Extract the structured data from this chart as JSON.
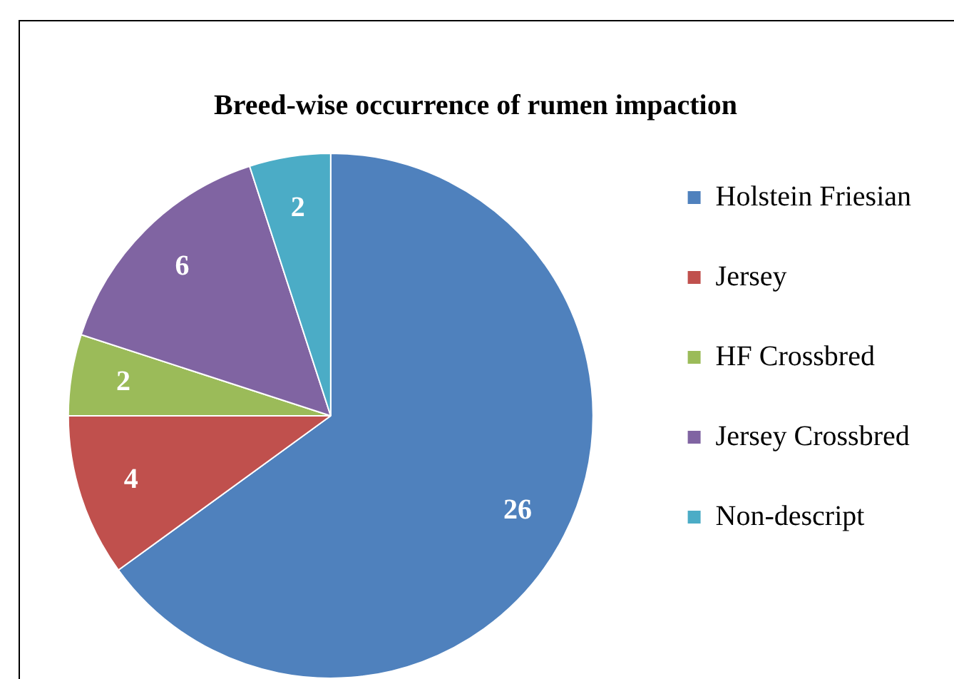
{
  "chart_data": {
    "type": "pie",
    "title": "Breed-wise occurrence of rumen impaction",
    "categories": [
      "Holstein Friesian",
      "Jersey",
      "HF Crossbred",
      "Jersey Crossbred",
      "Non-descript"
    ],
    "values": [
      26,
      4,
      2,
      6,
      2
    ],
    "colors": [
      "#4f81bd",
      "#c0504d",
      "#9bbb59",
      "#8064a2",
      "#4bacc6"
    ],
    "data_labels": true,
    "legend": "right"
  }
}
